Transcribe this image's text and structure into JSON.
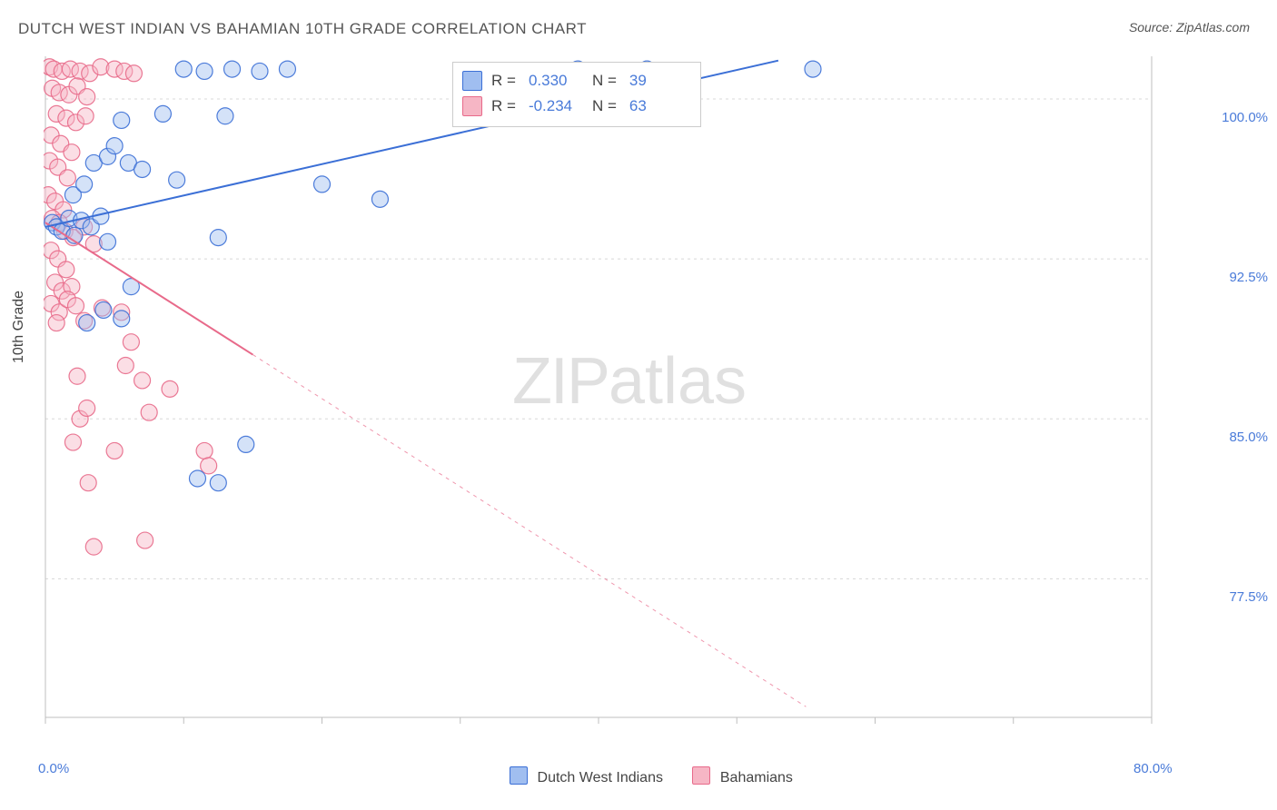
{
  "title": "DUTCH WEST INDIAN VS BAHAMIAN 10TH GRADE CORRELATION CHART",
  "source": "Source: ZipAtlas.com",
  "watermark_main": "ZIP",
  "watermark_sub": "atlas",
  "chart": {
    "type": "scatter",
    "y_axis_label": "10th Grade",
    "xlim": [
      0,
      80
    ],
    "ylim": [
      71,
      102
    ],
    "x_ticks": [
      0,
      10,
      20,
      30,
      40,
      50,
      60,
      70,
      80
    ],
    "x_tick_labels": [
      "0.0%",
      "",
      "",
      "",
      "",
      "",
      "",
      "",
      "80.0%"
    ],
    "y_grid": [
      77.5,
      85.0,
      92.5,
      100.0
    ],
    "y_tick_labels": [
      "77.5%",
      "85.0%",
      "92.5%",
      "100.0%"
    ],
    "background_color": "#ffffff",
    "grid_color": "#d8d8d8",
    "axis_color": "#bfbfbf",
    "marker_radius": 9,
    "marker_opacity": 0.45,
    "line_width": 2,
    "series": [
      {
        "key": "bahamians",
        "label": "Bahamians",
        "color": "#e86a8a",
        "fill": "#f6b6c5",
        "r": "-0.234",
        "n": "63",
        "line": {
          "x1": 0,
          "y1": 94.2,
          "x2": 55,
          "y2": 71.5,
          "solid_until_x": 15
        },
        "points": [
          [
            0.3,
            101.5
          ],
          [
            0.6,
            101.4
          ],
          [
            1.2,
            101.3
          ],
          [
            1.8,
            101.4
          ],
          [
            2.5,
            101.3
          ],
          [
            3.2,
            101.2
          ],
          [
            4.0,
            101.5
          ],
          [
            5.0,
            101.4
          ],
          [
            5.7,
            101.3
          ],
          [
            6.4,
            101.2
          ],
          [
            0.5,
            100.5
          ],
          [
            1.0,
            100.3
          ],
          [
            1.7,
            100.2
          ],
          [
            2.3,
            100.6
          ],
          [
            3.0,
            100.1
          ],
          [
            0.8,
            99.3
          ],
          [
            1.5,
            99.1
          ],
          [
            2.2,
            98.9
          ],
          [
            2.9,
            99.2
          ],
          [
            0.4,
            98.3
          ],
          [
            1.1,
            97.9
          ],
          [
            1.9,
            97.5
          ],
          [
            0.3,
            97.1
          ],
          [
            0.9,
            96.8
          ],
          [
            1.6,
            96.3
          ],
          [
            0.2,
            95.5
          ],
          [
            0.7,
            95.2
          ],
          [
            1.3,
            94.8
          ],
          [
            0.5,
            94.4
          ],
          [
            1.0,
            94.2
          ],
          [
            1.4,
            93.8
          ],
          [
            2.0,
            93.5
          ],
          [
            2.8,
            94.0
          ],
          [
            3.5,
            93.2
          ],
          [
            0.4,
            92.9
          ],
          [
            0.9,
            92.5
          ],
          [
            1.5,
            92.0
          ],
          [
            0.7,
            91.4
          ],
          [
            1.2,
            91.0
          ],
          [
            1.9,
            91.2
          ],
          [
            0.4,
            90.4
          ],
          [
            1.0,
            90.0
          ],
          [
            1.6,
            90.6
          ],
          [
            0.8,
            89.5
          ],
          [
            2.2,
            90.3
          ],
          [
            2.8,
            89.6
          ],
          [
            4.1,
            90.2
          ],
          [
            5.5,
            90.0
          ],
          [
            6.2,
            88.6
          ],
          [
            2.3,
            87.0
          ],
          [
            5.8,
            87.5
          ],
          [
            2.5,
            85.0
          ],
          [
            3.0,
            85.5
          ],
          [
            7.5,
            85.3
          ],
          [
            7.0,
            86.8
          ],
          [
            9.0,
            86.4
          ],
          [
            2.0,
            83.9
          ],
          [
            5.0,
            83.5
          ],
          [
            3.1,
            82.0
          ],
          [
            11.5,
            83.5
          ],
          [
            11.8,
            82.8
          ],
          [
            3.5,
            79.0
          ],
          [
            7.2,
            79.3
          ]
        ]
      },
      {
        "key": "dutch",
        "label": "Dutch West Indians",
        "color": "#3b6fd6",
        "fill": "#a0bef0",
        "r": "0.330",
        "n": "39",
        "line": {
          "x1": 0,
          "y1": 94.0,
          "x2": 53,
          "y2": 101.8,
          "solid_until_x": 53
        },
        "points": [
          [
            0.5,
            94.2
          ],
          [
            0.8,
            94.0
          ],
          [
            1.2,
            93.8
          ],
          [
            1.7,
            94.4
          ],
          [
            2.1,
            93.6
          ],
          [
            2.6,
            94.3
          ],
          [
            3.3,
            94.0
          ],
          [
            4.0,
            94.5
          ],
          [
            4.5,
            93.3
          ],
          [
            2.0,
            95.5
          ],
          [
            2.8,
            96.0
          ],
          [
            3.5,
            97.0
          ],
          [
            4.5,
            97.3
          ],
          [
            5.0,
            97.8
          ],
          [
            6.0,
            97.0
          ],
          [
            7.0,
            96.7
          ],
          [
            5.5,
            99.0
          ],
          [
            8.5,
            99.3
          ],
          [
            9.5,
            96.2
          ],
          [
            6.2,
            91.2
          ],
          [
            4.2,
            90.1
          ],
          [
            3.0,
            89.5
          ],
          [
            5.5,
            89.7
          ],
          [
            10.0,
            101.4
          ],
          [
            11.5,
            101.3
          ],
          [
            13.5,
            101.4
          ],
          [
            15.5,
            101.3
          ],
          [
            17.5,
            101.4
          ],
          [
            13.0,
            99.2
          ],
          [
            20.0,
            96.0
          ],
          [
            12.5,
            93.5
          ],
          [
            24.2,
            95.3
          ],
          [
            11.0,
            82.2
          ],
          [
            12.5,
            82.0
          ],
          [
            14.5,
            83.8
          ],
          [
            38.5,
            101.4
          ],
          [
            40.0,
            101.3
          ],
          [
            43.5,
            101.4
          ],
          [
            55.5,
            101.4
          ]
        ]
      }
    ]
  },
  "r_legend": {
    "r_label": "R = ",
    "n_label": "N = "
  },
  "bottom_legend": {
    "items": [
      {
        "key": "dutch"
      },
      {
        "key": "bahamians"
      }
    ]
  }
}
